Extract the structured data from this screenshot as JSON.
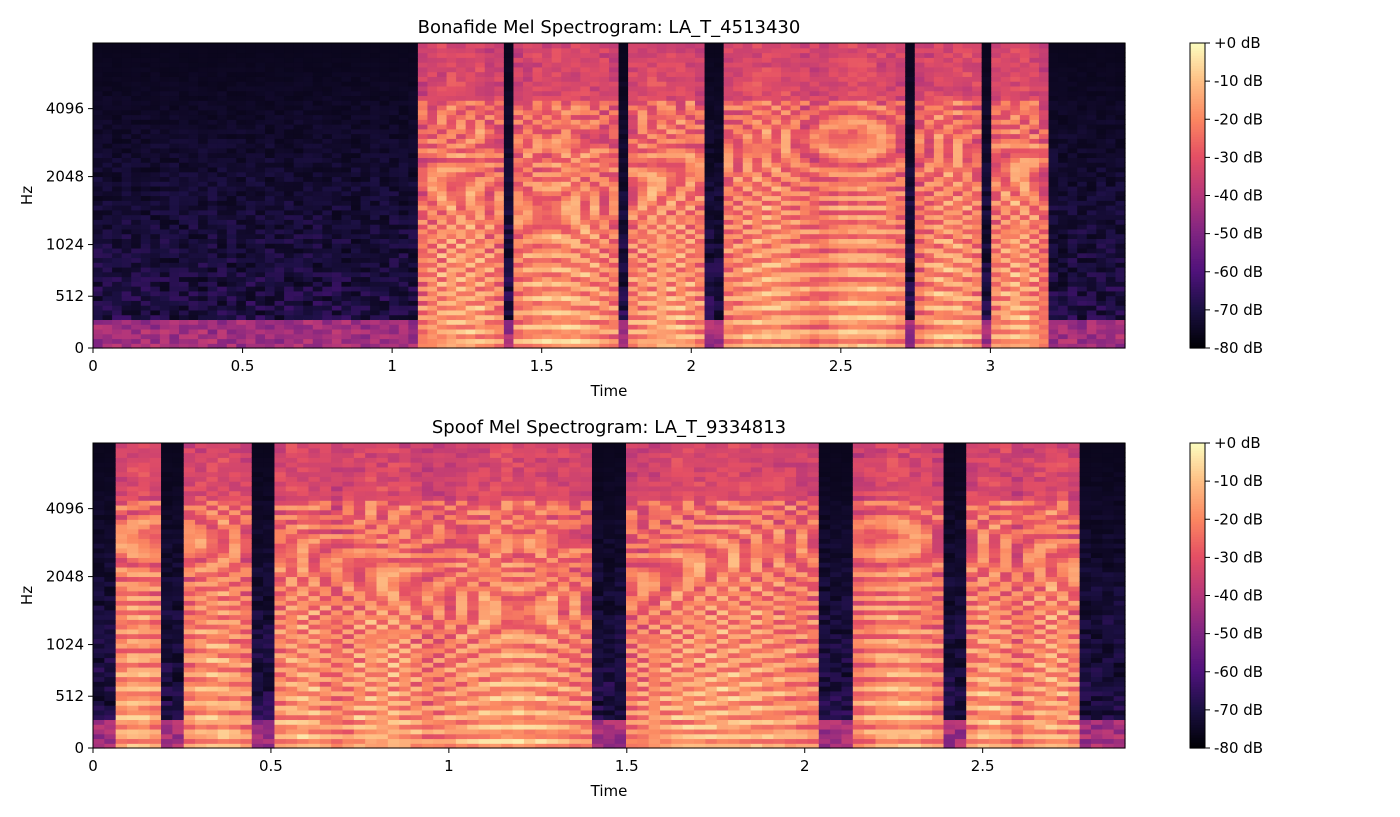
{
  "chart_data": [
    {
      "type": "heatmap",
      "title": "Bonafide Mel Spectrogram: LA_T_4513430",
      "xlabel": "Time",
      "ylabel": "Hz",
      "xlim": [
        0,
        3.45
      ],
      "x_ticks": [
        0,
        0.5,
        1,
        1.5,
        2,
        2.5,
        3
      ],
      "x_tick_labels": [
        "0",
        "0.5",
        "1",
        "1.5",
        "2",
        "2.5",
        "3"
      ],
      "y_scale": "mel",
      "y_ticks": [
        0,
        512,
        1024,
        2048,
        4096
      ],
      "y_tick_labels": [
        "0",
        "512",
        "1024",
        "2048",
        "4096"
      ],
      "colormap": "magma",
      "colorbar": {
        "range_db": [
          -80,
          0
        ],
        "ticks": [
          0,
          -10,
          -20,
          -30,
          -40,
          -50,
          -60,
          -70,
          -80
        ],
        "tick_labels": [
          "+0 dB",
          "-10 dB",
          "-20 dB",
          "-30 dB",
          "-40 dB",
          "-50 dB",
          "-60 dB",
          "-70 dB",
          "-80 dB"
        ]
      },
      "speech_segments": [
        [
          1.1,
          1.37
        ],
        [
          1.4,
          1.75
        ],
        [
          1.78,
          2.05
        ],
        [
          2.1,
          2.42
        ],
        [
          2.42,
          2.72
        ],
        [
          2.76,
          2.98
        ],
        [
          3.0,
          3.18
        ]
      ],
      "grid": false
    },
    {
      "type": "heatmap",
      "title": "Spoof Mel Spectrogram: LA_T_9334813",
      "xlabel": "Time",
      "ylabel": "Hz",
      "xlim": [
        0,
        2.9
      ],
      "x_ticks": [
        0,
        0.5,
        1,
        1.5,
        2,
        2.5
      ],
      "x_tick_labels": [
        "0",
        "0.5",
        "1",
        "1.5",
        "2",
        "2.5"
      ],
      "y_scale": "mel",
      "y_ticks": [
        0,
        512,
        1024,
        2048,
        4096
      ],
      "y_tick_labels": [
        "0",
        "512",
        "1024",
        "2048",
        "4096"
      ],
      "colormap": "magma",
      "colorbar": {
        "range_db": [
          -80,
          0
        ],
        "ticks": [
          0,
          -10,
          -20,
          -30,
          -40,
          -50,
          -60,
          -70,
          -80
        ],
        "tick_labels": [
          "+0 dB",
          "-10 dB",
          "-20 dB",
          "-30 dB",
          "-40 dB",
          "-50 dB",
          "-60 dB",
          "-70 dB",
          "-80 dB"
        ]
      },
      "speech_segments": [
        [
          0.05,
          0.2
        ],
        [
          0.25,
          0.45
        ],
        [
          0.5,
          0.68
        ],
        [
          0.68,
          0.95
        ],
        [
          0.95,
          1.4
        ],
        [
          1.5,
          2.05
        ],
        [
          2.15,
          2.38
        ],
        [
          2.45,
          2.6
        ],
        [
          2.6,
          2.78
        ]
      ],
      "grid": false
    }
  ]
}
